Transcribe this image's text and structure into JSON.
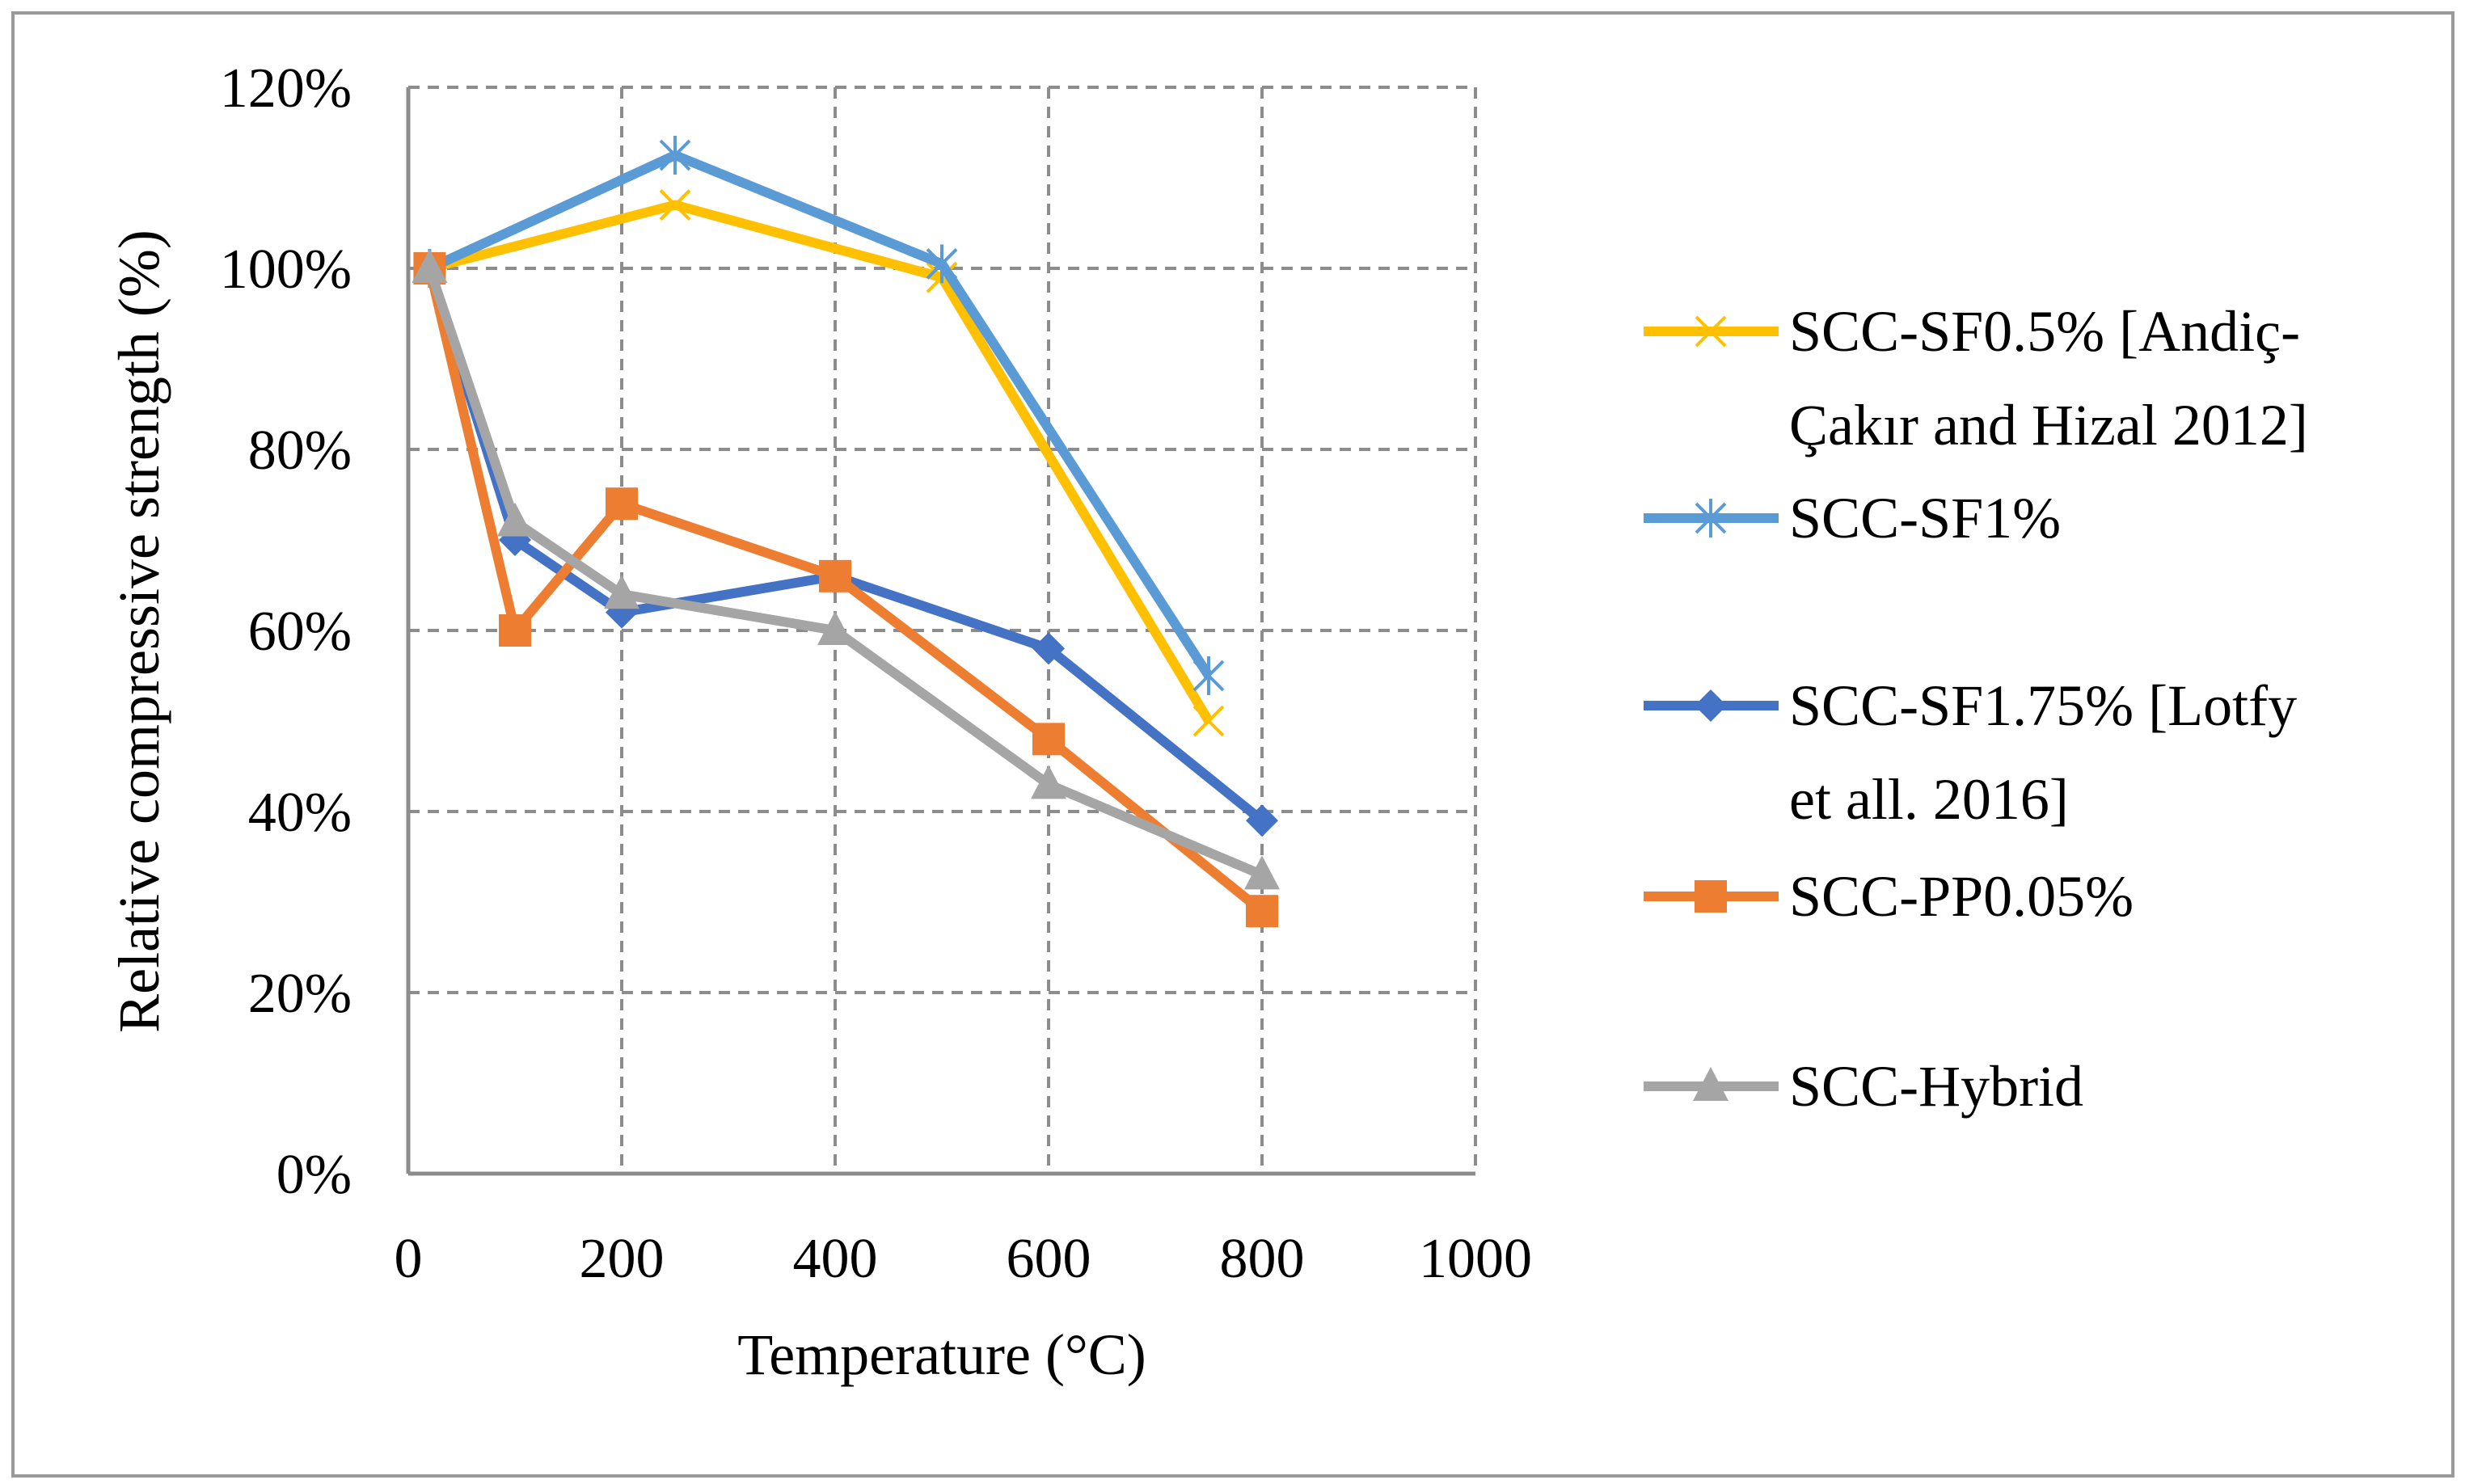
{
  "chart_data": {
    "type": "line",
    "title": "",
    "xlabel": "Temperature (°C)",
    "ylabel": "Relative compressive strength (%)",
    "xlim": [
      0,
      1000
    ],
    "ylim": [
      0,
      120
    ],
    "xticks": [
      0,
      200,
      400,
      600,
      800,
      1000
    ],
    "yticks": [
      0,
      20,
      40,
      60,
      80,
      100,
      120
    ],
    "xtick_labels": [
      "0",
      "200",
      "400",
      "600",
      "800",
      "1000"
    ],
    "ytick_labels": [
      "0%",
      "20%",
      "40%",
      "60%",
      "80%",
      "100%",
      "120%"
    ],
    "grid": true,
    "legend_position": "right",
    "series": [
      {
        "name": "SCC-SF0.5% [Andiç-Çakır and Hizal 2012]",
        "legend_lines": [
          "SCC-SF0.5% [Andiç-",
          "Çakır and Hizal 2012]"
        ],
        "color": "#FFC000",
        "marker": "x",
        "x": [
          20,
          250,
          500,
          750
        ],
        "y": [
          100,
          107,
          99,
          50
        ]
      },
      {
        "name": "SCC-SF1%",
        "legend_lines": [
          "SCC-SF1%"
        ],
        "color": "#5B9BD5",
        "marker": "star",
        "x": [
          20,
          250,
          500,
          750
        ],
        "y": [
          100,
          112.5,
          100.5,
          55
        ]
      },
      {
        "name": "SCC-SF1.75% [Lotfy et all. 2016]",
        "legend_lines": [
          "SCC-SF1.75% [Lotfy",
          "et all. 2016]"
        ],
        "color": "#4472C4",
        "marker": "diamond",
        "x": [
          20,
          100,
          200,
          400,
          600,
          800
        ],
        "y": [
          100,
          70,
          62,
          66,
          58,
          39
        ]
      },
      {
        "name": "SCC-PP0.05%",
        "legend_lines": [
          "SCC-PP0.05%"
        ],
        "color": "#ED7D31",
        "marker": "square",
        "x": [
          20,
          100,
          200,
          400,
          600,
          800
        ],
        "y": [
          100,
          60,
          74,
          66,
          48,
          29
        ]
      },
      {
        "name": "SCC-Hybrid",
        "legend_lines": [
          "SCC-Hybrid"
        ],
        "color": "#A5A5A5",
        "marker": "triangle",
        "x": [
          20,
          100,
          200,
          400,
          600,
          800
        ],
        "y": [
          100,
          72,
          64,
          60,
          43,
          33
        ]
      }
    ]
  }
}
